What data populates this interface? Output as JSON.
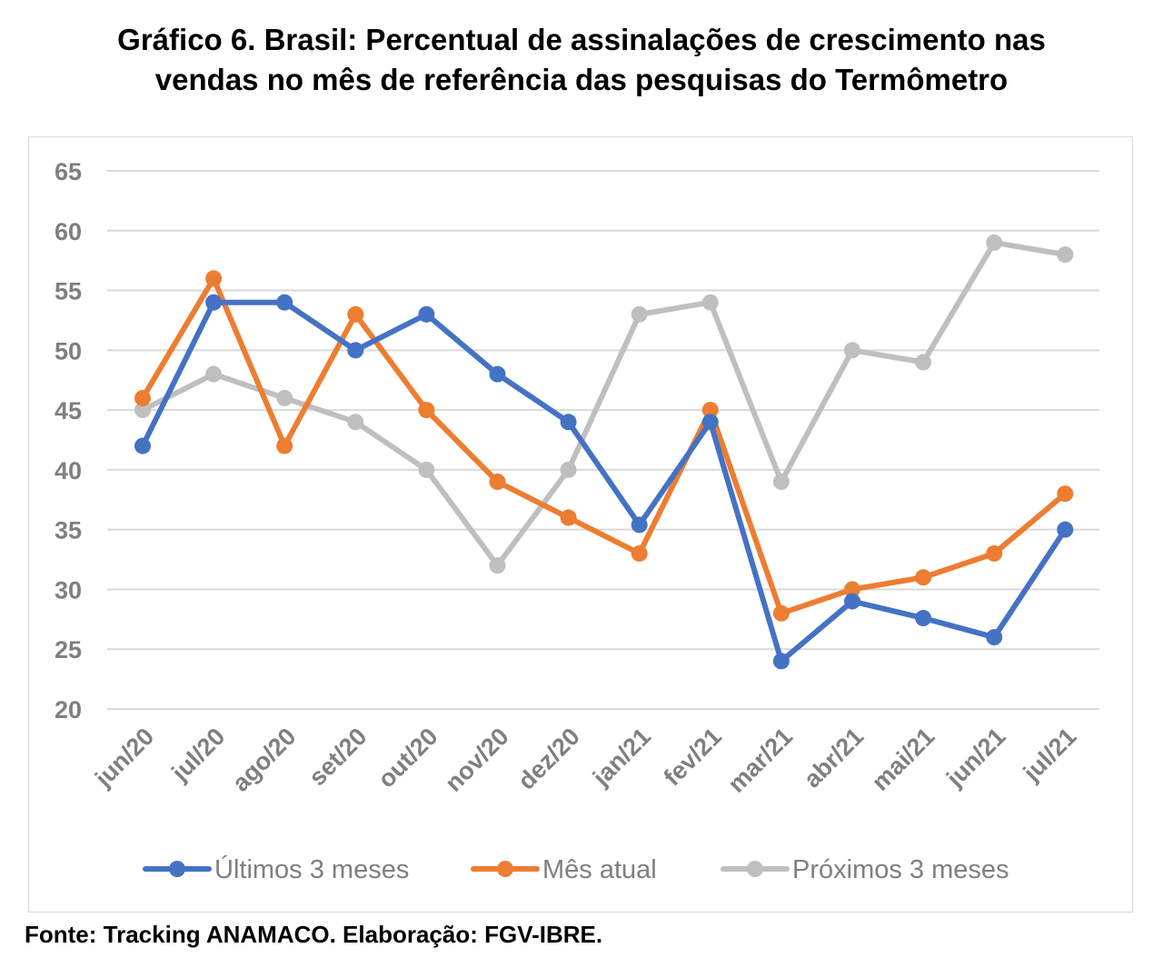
{
  "title_line1": "Gráfico 6. Brasil: Percentual de assinalações de crescimento nas",
  "title_line2": "vendas no mês de referência das pesquisas do Termômetro",
  "source": "Fonte: Tracking ANAMACO. Elaboração: FGV-IBRE.",
  "chart_data": {
    "type": "line",
    "categories": [
      "jun/20",
      "jul/20",
      "ago/20",
      "set/20",
      "out/20",
      "nov/20",
      "dez/20",
      "jan/21",
      "fev/21",
      "mar/21",
      "abr/21",
      "mai/21",
      "jun/21",
      "jul/21"
    ],
    "yticks": [
      20,
      25,
      30,
      35,
      40,
      45,
      50,
      55,
      60,
      65
    ],
    "ylim": [
      20,
      65
    ],
    "grid": true,
    "legend_position": "bottom",
    "series": [
      {
        "name": "Últimos 3 meses",
        "color": "#4472c4",
        "values": [
          42,
          54,
          54,
          50,
          53,
          48,
          44,
          35.4,
          44,
          24,
          29,
          27.6,
          26,
          35
        ]
      },
      {
        "name": "Mês atual",
        "color": "#ed7d31",
        "values": [
          46,
          56,
          42,
          53,
          45,
          39,
          36,
          33,
          45,
          28,
          30,
          31,
          33,
          38
        ]
      },
      {
        "name": "Próximos 3 meses",
        "color": "#bfbfbf",
        "values": [
          45,
          48,
          46,
          44,
          40,
          32,
          40,
          53,
          54,
          39,
          50,
          49,
          59,
          58
        ]
      }
    ]
  }
}
